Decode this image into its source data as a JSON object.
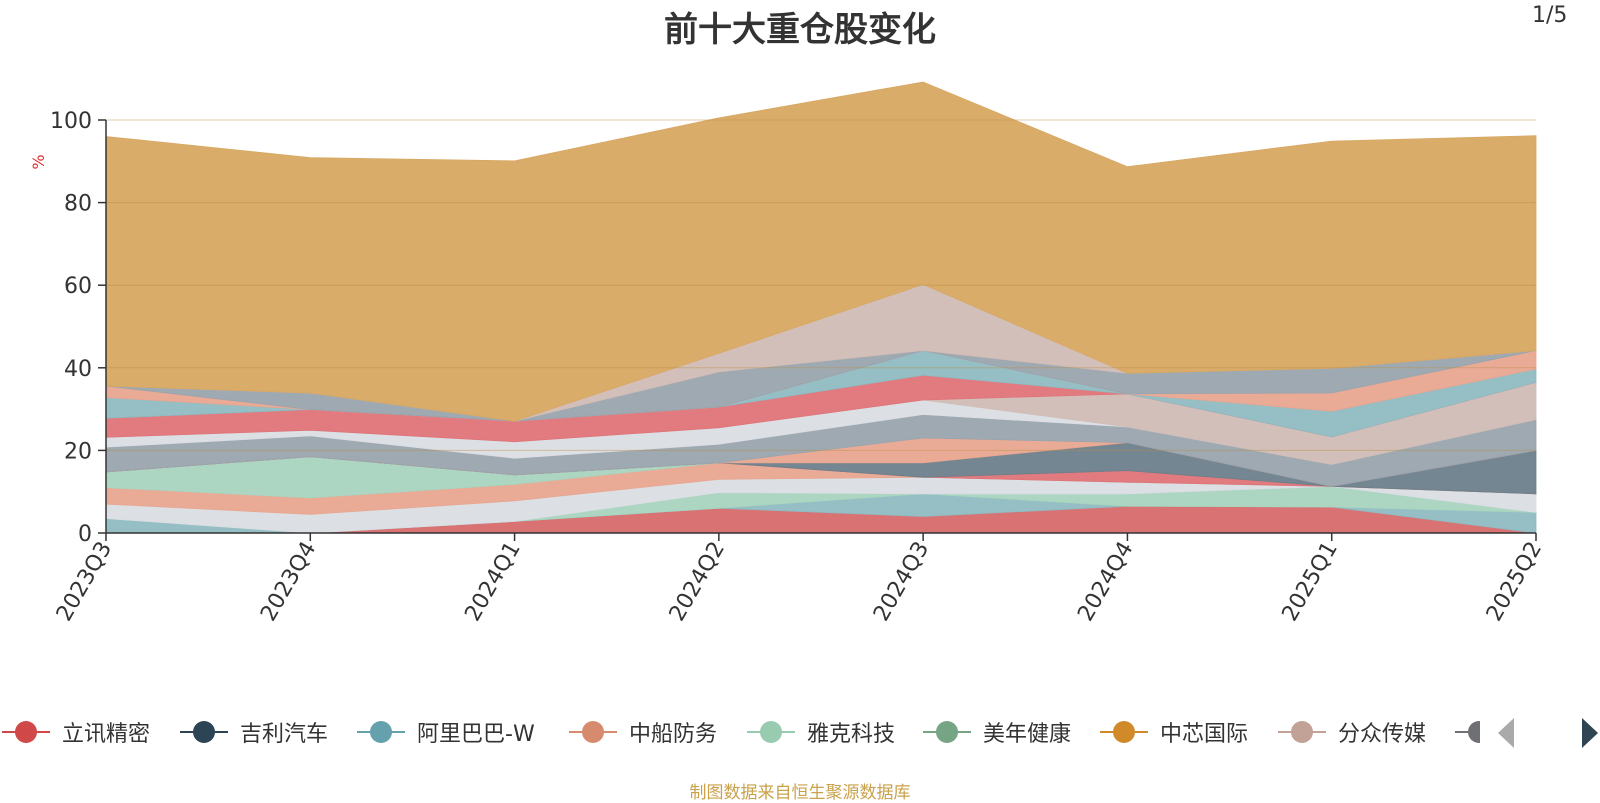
{
  "title": "前十大重仓股变化",
  "source": "制图数据来自恒生聚源数据库",
  "legend_page": "1/5",
  "chart_data": {
    "type": "area",
    "title": "前十大重仓股变化",
    "ylabel": "%",
    "ylim": [
      0,
      100
    ],
    "yticks": [
      0,
      20,
      40,
      60,
      80,
      100
    ],
    "categories": [
      "2023Q3",
      "2023Q4",
      "2024Q1",
      "2024Q2",
      "2024Q3",
      "2024Q4",
      "2025Q1",
      "2025Q2"
    ],
    "grid": true,
    "legend_position": "bottom",
    "series": [
      {
        "name": "立讯精密",
        "color": "#d76b6b",
        "values": [
          0,
          0,
          2.8,
          6,
          4,
          6.5,
          6.3,
          0
        ]
      },
      {
        "name": "",
        "color": "#8fbac2",
        "values": [
          3.5,
          0,
          0,
          0,
          5.5,
          0,
          0,
          5
        ]
      },
      {
        "name": "",
        "color": "#a8d4bf",
        "values": [
          0,
          0,
          0,
          3.8,
          0,
          3,
          5,
          0
        ]
      },
      {
        "name": "",
        "color": "#dadde3",
        "values": [
          3.5,
          4.5,
          5,
          3.2,
          4,
          2.8,
          0,
          4.5
        ]
      },
      {
        "name": "",
        "color": "#e8a690",
        "values": [
          4,
          4,
          4,
          4,
          0,
          0,
          0,
          0
        ]
      },
      {
        "name": "",
        "color": "#a8d4bf",
        "values": [
          3.8,
          10,
          2.3,
          0,
          0,
          0,
          0,
          0
        ]
      },
      {
        "name": "",
        "color": "#df7478",
        "values": [
          0,
          0,
          0,
          0,
          0,
          2.8,
          0,
          0
        ]
      },
      {
        "name": "",
        "color": "#6d7f8b",
        "values": [
          0,
          0,
          0,
          0,
          3.5,
          6.8,
          0,
          10.5
        ]
      },
      {
        "name": "",
        "color": "#e8a690",
        "values": [
          0,
          0,
          0,
          0,
          6,
          0,
          0,
          0
        ]
      },
      {
        "name": "",
        "color": "#9aa4ad",
        "values": [
          6,
          5,
          4,
          4.5,
          5.7,
          3.8,
          5.3,
          7.5
        ]
      },
      {
        "name": "",
        "color": "#dadde3",
        "values": [
          2.4,
          1.4,
          4,
          4,
          3.5,
          0,
          0,
          0
        ]
      },
      {
        "name": "",
        "color": "#d1bcb5",
        "values": [
          0,
          0,
          0,
          0,
          0,
          8,
          6.7,
          9
        ]
      },
      {
        "name": "",
        "color": "#df7478",
        "values": [
          4.6,
          5,
          5,
          5,
          6,
          0,
          0,
          0
        ]
      },
      {
        "name": "",
        "color": "#8fbac2",
        "values": [
          5,
          0,
          0,
          0,
          6,
          0,
          6.2,
          3.2
        ]
      },
      {
        "name": "",
        "color": "#e8a690",
        "values": [
          2.8,
          0,
          0,
          0,
          0,
          0,
          4.4,
          4.5
        ]
      },
      {
        "name": "",
        "color": "#9aa4ad",
        "values": [
          0,
          4,
          0,
          8.5,
          0,
          5,
          6,
          0
        ]
      },
      {
        "name": "",
        "color": "#d1bcb5",
        "values": [
          0,
          0,
          0,
          4.5,
          16,
          0,
          0,
          0
        ]
      },
      {
        "name": "",
        "color": "#d8a862",
        "values": [
          60.4,
          57,
          63,
          57,
          49,
          50,
          55,
          52
        ]
      }
    ],
    "legend": [
      {
        "name": "立讯精密",
        "color": "#d04848"
      },
      {
        "name": "吉利汽车",
        "color": "#2d4455"
      },
      {
        "name": "阿里巴巴-W",
        "color": "#65a1ad"
      },
      {
        "name": "中船防务",
        "color": "#d68a6e"
      },
      {
        "name": "雅克科技",
        "color": "#98cbb0"
      },
      {
        "name": "美年健康",
        "color": "#76a585"
      },
      {
        "name": "中芯国际",
        "color": "#d08a2a"
      },
      {
        "name": "分众传媒",
        "color": "#c2a196"
      },
      {
        "name": "",
        "color": "#6e7074"
      }
    ]
  }
}
